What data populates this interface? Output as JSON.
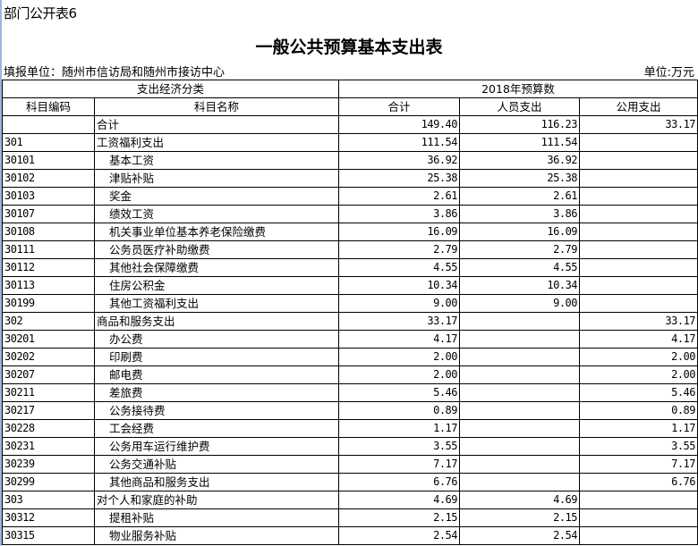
{
  "sheet_id": "部门公开表6",
  "title": "一般公共预算基本支出表",
  "unit_left": "填报单位：随州市信访局和随州市接访中心",
  "unit_right": "单位:万元",
  "header": {
    "group1": "支出经济分类",
    "group2": "2018年预算数",
    "columns": [
      "科目编码",
      "科目名称",
      "合计",
      "人员支出",
      "公用支出"
    ]
  },
  "rows": [
    {
      "code": "",
      "name": "合计",
      "level": 0,
      "total": "149.40",
      "personnel": "116.23",
      "public": "33.17"
    },
    {
      "code": "301",
      "name": "工资福利支出",
      "level": 0,
      "total": "111.54",
      "personnel": "111.54",
      "public": ""
    },
    {
      "code": "30101",
      "name": "基本工资",
      "level": 1,
      "total": "36.92",
      "personnel": "36.92",
      "public": ""
    },
    {
      "code": "30102",
      "name": "津贴补贴",
      "level": 1,
      "total": "25.38",
      "personnel": "25.38",
      "public": ""
    },
    {
      "code": "30103",
      "name": "奖金",
      "level": 1,
      "total": "2.61",
      "personnel": "2.61",
      "public": ""
    },
    {
      "code": "30107",
      "name": "绩效工资",
      "level": 1,
      "total": "3.86",
      "personnel": "3.86",
      "public": ""
    },
    {
      "code": "30108",
      "name": "机关事业单位基本养老保险缴费",
      "level": 1,
      "total": "16.09",
      "personnel": "16.09",
      "public": ""
    },
    {
      "code": "30111",
      "name": "公务员医疗补助缴费",
      "level": 1,
      "total": "2.79",
      "personnel": "2.79",
      "public": ""
    },
    {
      "code": "30112",
      "name": "其他社会保障缴费",
      "level": 1,
      "total": "4.55",
      "personnel": "4.55",
      "public": ""
    },
    {
      "code": "30113",
      "name": "住房公积金",
      "level": 1,
      "total": "10.34",
      "personnel": "10.34",
      "public": ""
    },
    {
      "code": "30199",
      "name": "其他工资福利支出",
      "level": 1,
      "total": "9.00",
      "personnel": "9.00",
      "public": ""
    },
    {
      "code": "302",
      "name": "商品和服务支出",
      "level": 0,
      "total": "33.17",
      "personnel": "",
      "public": "33.17"
    },
    {
      "code": "30201",
      "name": "办公费",
      "level": 1,
      "total": "4.17",
      "personnel": "",
      "public": "4.17"
    },
    {
      "code": "30202",
      "name": "印刷费",
      "level": 1,
      "total": "2.00",
      "personnel": "",
      "public": "2.00"
    },
    {
      "code": "30207",
      "name": "邮电费",
      "level": 1,
      "total": "2.00",
      "personnel": "",
      "public": "2.00"
    },
    {
      "code": "30211",
      "name": "差旅费",
      "level": 1,
      "total": "5.46",
      "personnel": "",
      "public": "5.46"
    },
    {
      "code": "30217",
      "name": "公务接待费",
      "level": 1,
      "total": "0.89",
      "personnel": "",
      "public": "0.89"
    },
    {
      "code": "30228",
      "name": "工会经费",
      "level": 1,
      "total": "1.17",
      "personnel": "",
      "public": "1.17"
    },
    {
      "code": "30231",
      "name": "公务用车运行维护费",
      "level": 1,
      "total": "3.55",
      "personnel": "",
      "public": "3.55"
    },
    {
      "code": "30239",
      "name": "公务交通补贴",
      "level": 1,
      "total": "7.17",
      "personnel": "",
      "public": "7.17"
    },
    {
      "code": "30299",
      "name": "其他商品和服务支出",
      "level": 1,
      "total": "6.76",
      "personnel": "",
      "public": "6.76"
    },
    {
      "code": "303",
      "name": "对个人和家庭的补助",
      "level": 0,
      "total": "4.69",
      "personnel": "4.69",
      "public": ""
    },
    {
      "code": "30312",
      "name": "提租补贴",
      "level": 1,
      "total": "2.15",
      "personnel": "2.15",
      "public": ""
    },
    {
      "code": "30315",
      "name": "物业服务补贴",
      "level": 1,
      "total": "2.54",
      "personnel": "2.54",
      "public": ""
    }
  ]
}
